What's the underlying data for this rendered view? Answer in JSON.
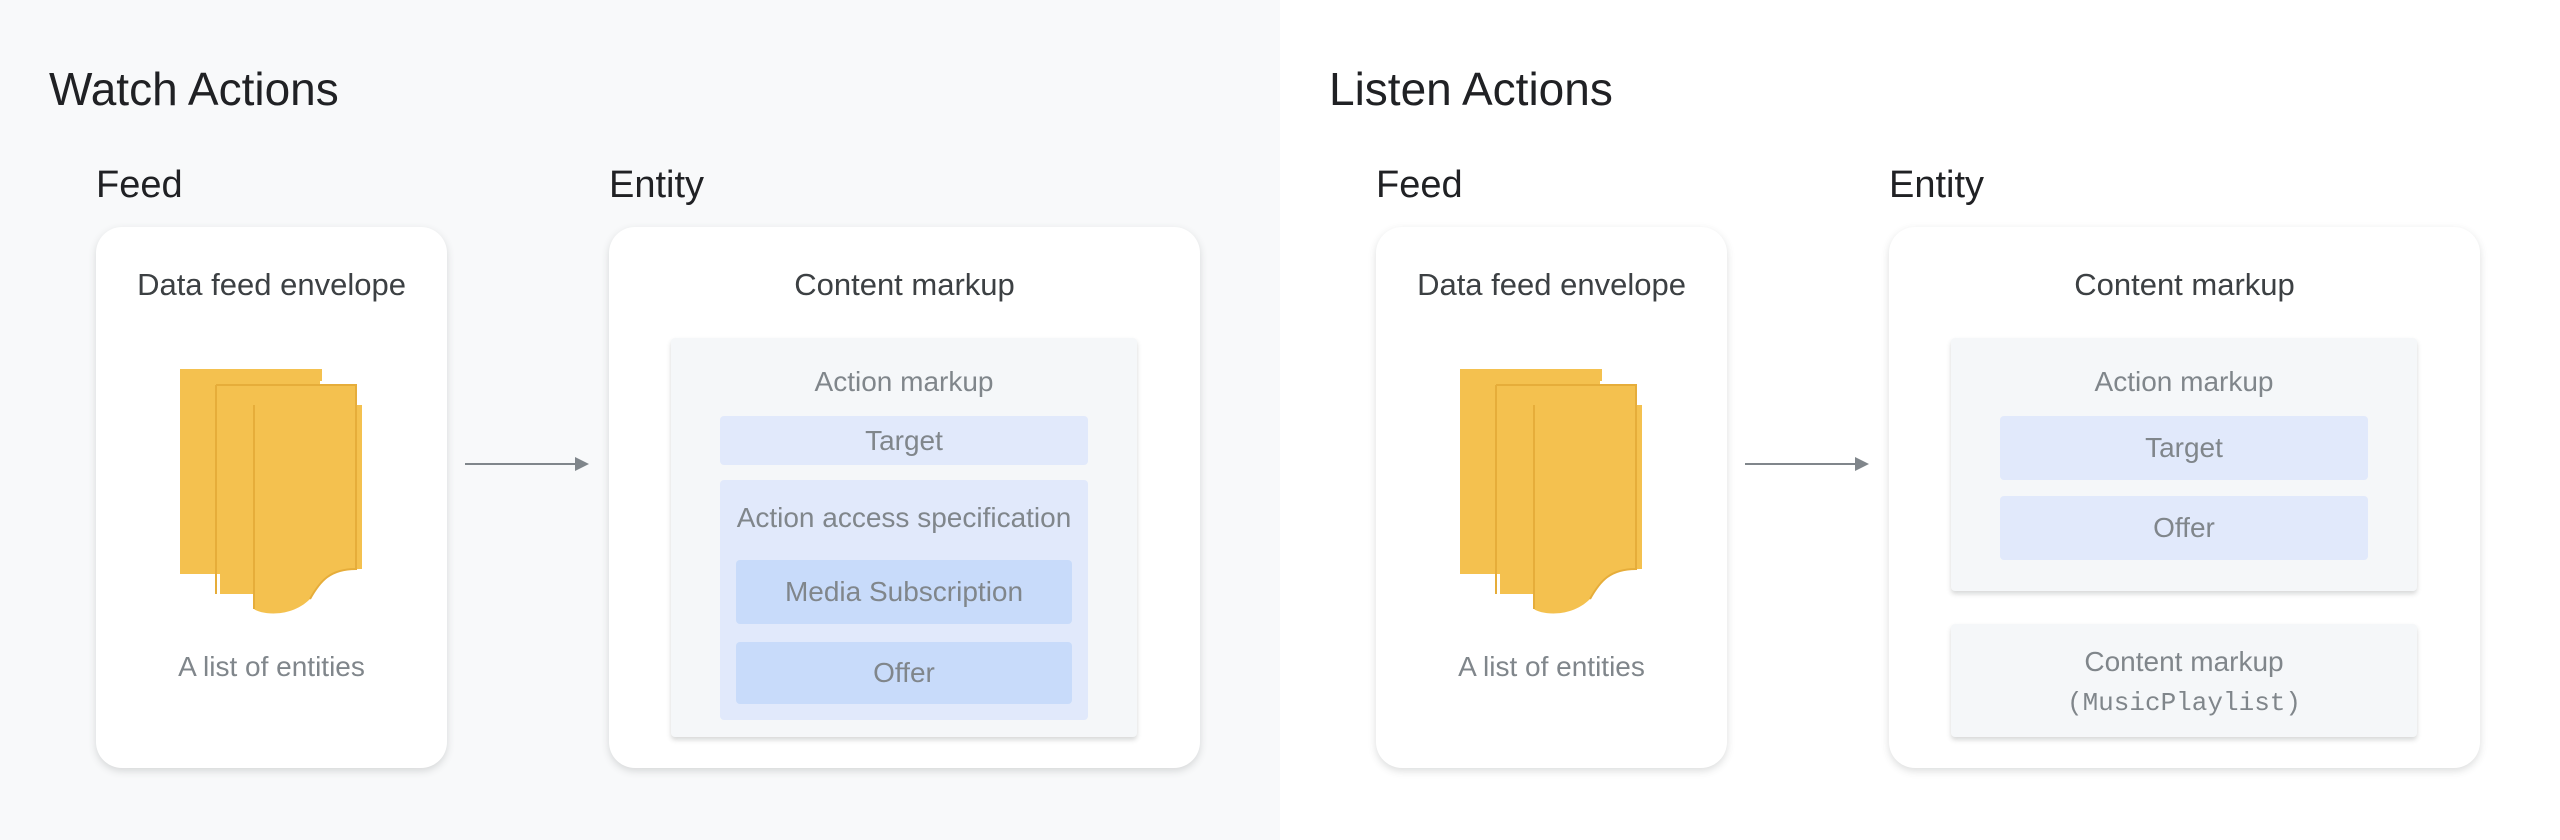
{
  "watch": {
    "title": "Watch Actions",
    "feed_label": "Feed",
    "entity_label": "Entity",
    "feed_card_title": "Data feed envelope",
    "feed_card_caption": "A list of entities",
    "entity_card_title": "Content markup",
    "action_markup": "Action markup",
    "target": "Target",
    "access_spec": "Action access specification",
    "media_subscription": "Media Subscription",
    "offer": "Offer"
  },
  "listen": {
    "title": "Listen Actions",
    "feed_label": "Feed",
    "entity_label": "Entity",
    "feed_card_title": "Data feed envelope",
    "feed_card_caption": "A list of entities",
    "entity_card_title": "Content markup",
    "action_markup": "Action markup",
    "target": "Target",
    "offer": "Offer",
    "content_markup": "Content markup",
    "content_type": "(MusicPlaylist)"
  },
  "colors": {
    "documents": "#f4c14f",
    "light_blue": "#e1e9fb",
    "blue": "#c8dbfa",
    "arrow": "#80868b"
  }
}
